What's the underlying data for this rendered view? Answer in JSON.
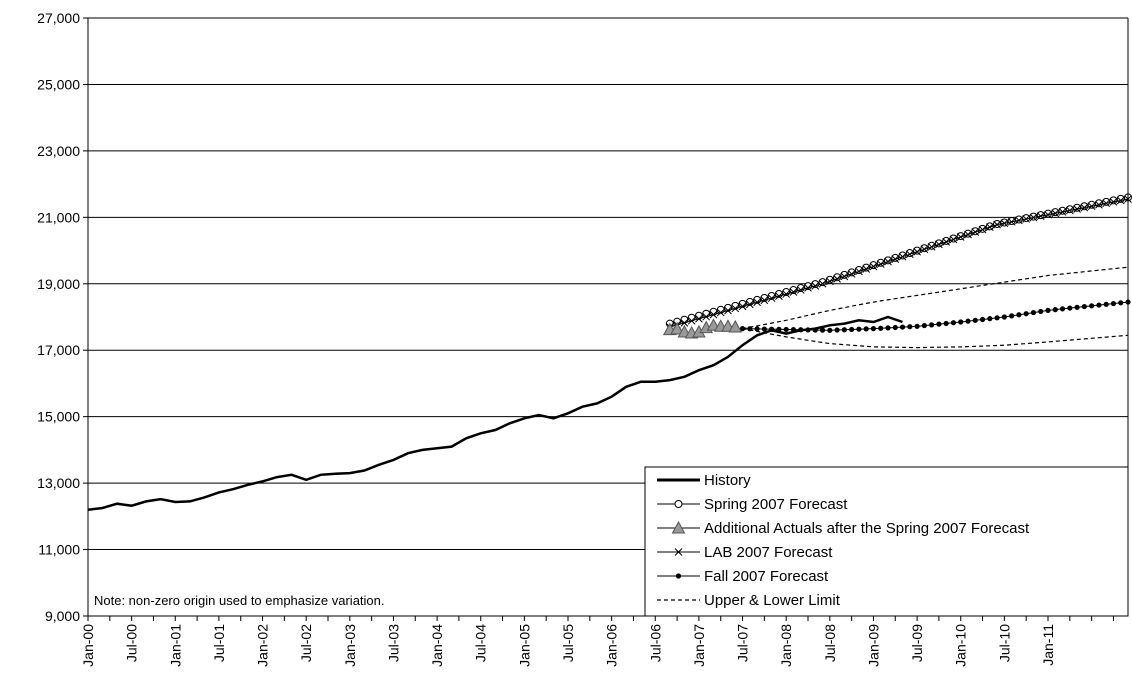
{
  "chart_data": {
    "type": "line",
    "title": "",
    "xlabel": "",
    "ylabel": "",
    "ylim": [
      9000,
      27000
    ],
    "yticks": [
      9000,
      11000,
      13000,
      15000,
      17000,
      19000,
      21000,
      23000,
      25000,
      27000
    ],
    "ytick_labels": [
      "9,000",
      "11,000",
      "13,000",
      "15,000",
      "17,000",
      "19,000",
      "21,000",
      "23,000",
      "25,000",
      "27,000"
    ],
    "xlim": [
      "Jan-00",
      "Dec-11"
    ],
    "xtick_labels": [
      "Jan-00",
      "Jul-00",
      "Jan-01",
      "Jul-01",
      "Jan-02",
      "Jul-02",
      "Jan-03",
      "Jul-03",
      "Jan-04",
      "Jul-04",
      "Jan-05",
      "Jul-05",
      "Jan-06",
      "Jul-06",
      "Jan-07",
      "Jul-07",
      "Jan-08",
      "Jul-08",
      "Jan-09",
      "Jul-09",
      "Jan-10",
      "Jul-10",
      "Jan-11"
    ],
    "grid": "horizontal",
    "legend_position": "bottom-right",
    "note": "Note: non-zero origin used to emphasize variation.",
    "series": [
      {
        "name": "History",
        "style": "thick-line",
        "color": "#000000",
        "points": [
          [
            "Jan-00",
            12200
          ],
          [
            "Mar-00",
            12250
          ],
          [
            "May-00",
            12380
          ],
          [
            "Jul-00",
            12320
          ],
          [
            "Sep-00",
            12450
          ],
          [
            "Nov-00",
            12520
          ],
          [
            "Jan-01",
            12430
          ],
          [
            "Mar-01",
            12450
          ],
          [
            "May-01",
            12570
          ],
          [
            "Jul-01",
            12720
          ],
          [
            "Sep-01",
            12820
          ],
          [
            "Nov-01",
            12950
          ],
          [
            "Jan-02",
            13050
          ],
          [
            "Mar-02",
            13180
          ],
          [
            "May-02",
            13250
          ],
          [
            "Jul-02",
            13100
          ],
          [
            "Sep-02",
            13250
          ],
          [
            "Nov-02",
            13280
          ],
          [
            "Jan-03",
            13300
          ],
          [
            "Mar-03",
            13380
          ],
          [
            "May-03",
            13550
          ],
          [
            "Jul-03",
            13700
          ],
          [
            "Sep-03",
            13900
          ],
          [
            "Nov-03",
            14000
          ],
          [
            "Jan-04",
            14050
          ],
          [
            "Mar-04",
            14100
          ],
          [
            "May-04",
            14350
          ],
          [
            "Jul-04",
            14500
          ],
          [
            "Sep-04",
            14600
          ],
          [
            "Nov-04",
            14800
          ],
          [
            "Jan-05",
            14950
          ],
          [
            "Mar-05",
            15050
          ],
          [
            "May-05",
            14950
          ],
          [
            "Jul-05",
            15100
          ],
          [
            "Sep-05",
            15300
          ],
          [
            "Nov-05",
            15400
          ],
          [
            "Jan-06",
            15600
          ],
          [
            "Mar-06",
            15900
          ],
          [
            "May-06",
            16050
          ],
          [
            "Jul-06",
            16050
          ],
          [
            "Sep-06",
            16100
          ],
          [
            "Nov-06",
            16200
          ],
          [
            "Jan-07",
            16400
          ],
          [
            "Mar-07",
            16550
          ],
          [
            "May-07",
            16800
          ],
          [
            "Jul-07",
            17150
          ],
          [
            "Sep-07",
            17450
          ],
          [
            "Nov-07",
            17600
          ],
          [
            "Jan-08",
            17500
          ],
          [
            "Mar-08",
            17600
          ],
          [
            "May-08",
            17650
          ],
          [
            "Jul-08",
            17750
          ],
          [
            "Sep-08",
            17800
          ],
          [
            "Nov-08",
            17900
          ],
          [
            "Jan-09",
            17850
          ],
          [
            "Mar-09",
            18000
          ],
          [
            "May-09",
            17850
          ]
        ]
      },
      {
        "name": "Spring 2007 Forecast",
        "style": "line-open-circle",
        "color": "#000000",
        "points": [
          [
            "Sep-06",
            17800
          ],
          [
            "Jun-08",
            19050
          ],
          [
            "Jun-10",
            20800
          ],
          [
            "Dec-11",
            21600
          ]
        ]
      },
      {
        "name": "Additional Actuals after the Spring 2007 Forecast",
        "style": "line-gray-triangle",
        "color": "#808080",
        "points": [
          [
            "Sep-06",
            17620
          ],
          [
            "Oct-06",
            17640
          ],
          [
            "Nov-06",
            17550
          ],
          [
            "Dec-06",
            17520
          ],
          [
            "Jan-07",
            17550
          ],
          [
            "Feb-07",
            17680
          ],
          [
            "Mar-07",
            17750
          ],
          [
            "Apr-07",
            17720
          ],
          [
            "May-07",
            17720
          ],
          [
            "Jun-07",
            17700
          ]
        ]
      },
      {
        "name": "LAB 2007 Forecast",
        "style": "line-x",
        "color": "#000000",
        "points": [
          [
            "Sep-06",
            17700
          ],
          [
            "Jun-08",
            19000
          ],
          [
            "Jun-10",
            20780
          ],
          [
            "Dec-11",
            21550
          ]
        ]
      },
      {
        "name": "Fall 2007 Forecast",
        "style": "line-dot",
        "color": "#000000",
        "points": [
          [
            "Jul-07",
            17650
          ],
          [
            "Jul-08",
            17600
          ],
          [
            "Jan-09",
            17650
          ],
          [
            "Jul-09",
            17720
          ],
          [
            "Jan-10",
            17850
          ],
          [
            "Jul-10",
            18000
          ],
          [
            "Jan-11",
            18200
          ],
          [
            "Dec-11",
            18450
          ]
        ]
      },
      {
        "name": "Upper & Lower Limit",
        "style": "dashed",
        "color": "#000000",
        "points": [
          [
            "Jul-07",
            17650
          ],
          [
            "Jan-08",
            17900
          ],
          [
            "Jul-08",
            18200
          ],
          [
            "Jan-09",
            18450
          ],
          [
            "Jul-09",
            18650
          ],
          [
            "Jan-10",
            18850
          ],
          [
            "Jul-10",
            19050
          ],
          [
            "Jan-11",
            19250
          ],
          [
            "Dec-11",
            19500
          ]
        ],
        "lower_points": [
          [
            "Jul-07",
            17650
          ],
          [
            "Jan-08",
            17400
          ],
          [
            "Jul-08",
            17200
          ],
          [
            "Jan-09",
            17100
          ],
          [
            "Jul-09",
            17080
          ],
          [
            "Jan-10",
            17100
          ],
          [
            "Jul-10",
            17150
          ],
          [
            "Jan-11",
            17250
          ],
          [
            "Dec-11",
            17450
          ]
        ]
      }
    ]
  }
}
